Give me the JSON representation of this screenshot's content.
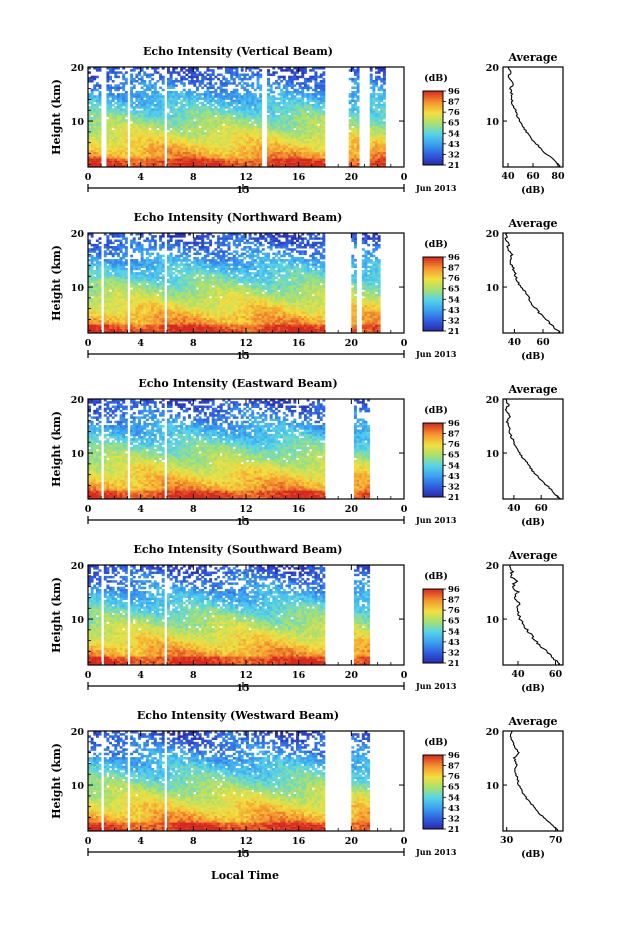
{
  "figure": {
    "x_axis_label": "Local Time",
    "date_label": "Jun 2013",
    "mid_label": "15",
    "colorbar_unit": "(dB)",
    "colorbar_ticks": [
      "96",
      "87",
      "76",
      "65",
      "54",
      "43",
      "32",
      "21"
    ],
    "avg_title": "Average",
    "avg_xlabel": "(dB)",
    "main_ylabel": "Height (km)"
  },
  "chart_data": [
    {
      "type": "heatmap",
      "title": "Echo Intensity (Vertical Beam)",
      "xlabel": "Local Time",
      "ylabel": "Height (km)",
      "x_ticks": [
        "0",
        "4",
        "8",
        "12",
        "16",
        "20",
        "0"
      ],
      "y_ticks": [
        "10",
        "20"
      ],
      "xlim": [
        0,
        24
      ],
      "ylim": [
        1.5,
        20
      ],
      "colorbar": {
        "unit": "dB",
        "ticks": [
          21,
          32,
          43,
          54,
          65,
          76,
          87,
          96
        ]
      },
      "gaps_hours": [
        [
          1.0,
          1.5
        ],
        [
          3.0,
          3.3
        ],
        [
          5.7,
          6.0
        ],
        [
          13.3,
          13.6
        ],
        [
          18.0,
          19.8
        ],
        [
          20.6,
          21.3
        ],
        [
          22.7,
          24
        ]
      ],
      "profile": {
        "title": "Average",
        "xlabel": "(dB)",
        "x_ticks": [
          "40",
          "60",
          "80"
        ],
        "y_ticks": [
          "10",
          "20"
        ],
        "xlim": [
          36,
          84
        ],
        "heights_km": [
          1.5,
          2,
          3,
          4,
          5,
          6,
          7,
          8,
          9,
          10,
          11,
          12,
          13,
          14,
          15,
          16,
          17,
          18,
          19,
          20
        ],
        "values_db": [
          82,
          80,
          76,
          70,
          66,
          62,
          58,
          55,
          52,
          49,
          47,
          46,
          44,
          43,
          43,
          42,
          44,
          40,
          42,
          40
        ]
      }
    },
    {
      "type": "heatmap",
      "title": "Echo Intensity (Northward Beam)",
      "xlabel": "Local Time",
      "ylabel": "Height (km)",
      "x_ticks": [
        "0",
        "4",
        "8",
        "12",
        "16",
        "20",
        "0"
      ],
      "y_ticks": [
        "10",
        "20"
      ],
      "xlim": [
        0,
        24
      ],
      "ylim": [
        1.5,
        20
      ],
      "colorbar": {
        "unit": "dB",
        "ticks": [
          21,
          32,
          43,
          54,
          65,
          76,
          87,
          96
        ]
      },
      "gaps_hours": [
        [
          1.0,
          1.3
        ],
        [
          3.0,
          3.2
        ],
        [
          5.7,
          5.9
        ],
        [
          18.0,
          20.0
        ],
        [
          20.5,
          20.8
        ],
        [
          22.3,
          24
        ]
      ],
      "profile": {
        "title": "Average",
        "xlabel": "(dB)",
        "x_ticks": [
          "40",
          "60"
        ],
        "y_ticks": [
          "10",
          "20"
        ],
        "xlim": [
          32,
          74
        ],
        "heights_km": [
          1.5,
          2,
          3,
          4,
          5,
          6,
          7,
          8,
          9,
          10,
          11,
          12,
          13,
          14,
          15,
          16,
          17,
          18,
          19,
          20
        ],
        "values_db": [
          72,
          70,
          66,
          62,
          58,
          55,
          52,
          50,
          48,
          44,
          42,
          41,
          40,
          38,
          37,
          38,
          35,
          36,
          34,
          35
        ]
      }
    },
    {
      "type": "heatmap",
      "title": "Echo Intensity (Eastward Beam)",
      "xlabel": "Local Time",
      "ylabel": "Height (km)",
      "x_ticks": [
        "0",
        "4",
        "8",
        "12",
        "16",
        "20",
        "0"
      ],
      "y_ticks": [
        "10",
        "20"
      ],
      "xlim": [
        0,
        24
      ],
      "ylim": [
        1.5,
        20
      ],
      "colorbar": {
        "unit": "dB",
        "ticks": [
          21,
          32,
          43,
          54,
          65,
          76,
          87,
          96
        ]
      },
      "gaps_hours": [
        [
          1.0,
          1.3
        ],
        [
          3.0,
          3.2
        ],
        [
          5.7,
          5.9
        ],
        [
          18.0,
          20.2
        ],
        [
          21.3,
          24
        ]
      ],
      "profile": {
        "title": "Average",
        "xlabel": "(dB)",
        "x_ticks": [
          "40",
          "60"
        ],
        "y_ticks": [
          "10",
          "20"
        ],
        "xlim": [
          32,
          76
        ],
        "heights_km": [
          1.5,
          2,
          3,
          4,
          5,
          6,
          7,
          8,
          9,
          10,
          11,
          12,
          13,
          14,
          15,
          16,
          17,
          18,
          19,
          20
        ],
        "values_db": [
          74,
          72,
          68,
          64,
          60,
          56,
          53,
          50,
          47,
          44,
          42,
          40,
          38,
          37,
          36,
          35,
          37,
          34,
          36,
          34
        ]
      }
    },
    {
      "type": "heatmap",
      "title": "Echo Intensity (Southward Beam)",
      "xlabel": "Local Time",
      "ylabel": "Height (km)",
      "x_ticks": [
        "0",
        "4",
        "8",
        "12",
        "16",
        "20",
        "0"
      ],
      "y_ticks": [
        "10",
        "20"
      ],
      "xlim": [
        0,
        24
      ],
      "ylim": [
        1.5,
        20
      ],
      "colorbar": {
        "unit": "dB",
        "ticks": [
          21,
          32,
          43,
          54,
          65,
          76,
          87,
          96
        ]
      },
      "gaps_hours": [
        [
          1.0,
          1.3
        ],
        [
          3.0,
          3.2
        ],
        [
          5.7,
          5.9
        ],
        [
          18.0,
          20.2
        ],
        [
          21.5,
          24
        ]
      ],
      "profile": {
        "title": "Average",
        "xlabel": "(dB)",
        "x_ticks": [
          "40",
          "60"
        ],
        "y_ticks": [
          "10",
          "20"
        ],
        "xlim": [
          32,
          64
        ],
        "heights_km": [
          1.5,
          2,
          3,
          4,
          5,
          6,
          7,
          8,
          9,
          10,
          11,
          12,
          13,
          14,
          15,
          16,
          17,
          18,
          19,
          20
        ],
        "values_db": [
          63,
          61,
          58,
          55,
          52,
          49,
          47,
          45,
          43,
          41,
          40,
          39,
          41,
          38,
          40,
          37,
          39,
          36,
          37,
          36
        ]
      }
    },
    {
      "type": "heatmap",
      "title": "Echo Intensity (Westward Beam)",
      "xlabel": "Local Time",
      "ylabel": "Height (km)",
      "x_ticks": [
        "0",
        "4",
        "8",
        "12",
        "16",
        "20",
        "0"
      ],
      "y_ticks": [
        "10",
        "20"
      ],
      "xlim": [
        0,
        24
      ],
      "ylim": [
        1.5,
        20
      ],
      "colorbar": {
        "unit": "dB",
        "ticks": [
          21,
          32,
          43,
          54,
          65,
          76,
          87,
          96
        ]
      },
      "gaps_hours": [
        [
          1.0,
          1.3
        ],
        [
          3.0,
          3.2
        ],
        [
          5.7,
          5.9
        ],
        [
          18.0,
          20.0
        ],
        [
          21.5,
          24
        ]
      ],
      "profile": {
        "title": "Average",
        "xlabel": "(dB)",
        "x_ticks": [
          "30",
          "70"
        ],
        "y_ticks": [
          "10",
          "20"
        ],
        "xlim": [
          27,
          76
        ],
        "heights_km": [
          1.5,
          2,
          3,
          4,
          5,
          6,
          7,
          8,
          9,
          10,
          11,
          12,
          13,
          14,
          15,
          16,
          17,
          18,
          19,
          20
        ],
        "values_db": [
          72,
          70,
          65,
          60,
          56,
          52,
          48,
          45,
          42,
          40,
          39,
          38,
          37,
          38,
          36,
          40,
          37,
          35,
          33,
          34
        ]
      }
    }
  ]
}
